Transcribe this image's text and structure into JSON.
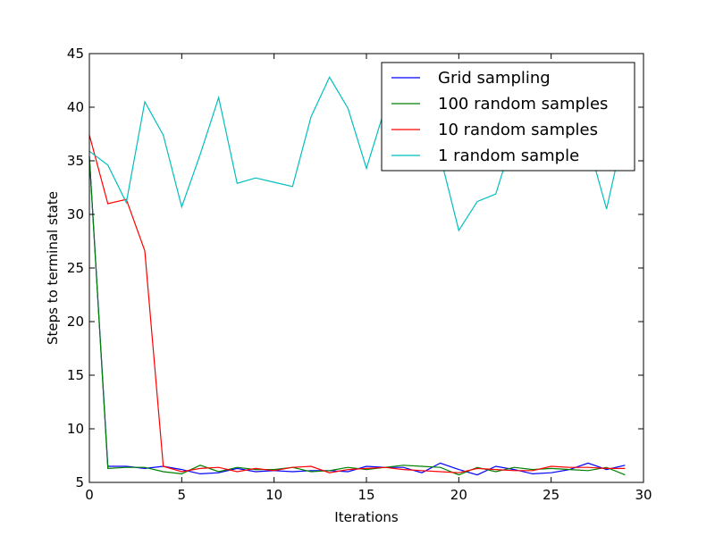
{
  "chart_data": {
    "type": "line",
    "xlabel": "Iterations",
    "ylabel": "Steps to terminal state",
    "xlim": [
      0,
      30
    ],
    "ylim": [
      5,
      45
    ],
    "xticks": [
      0,
      5,
      10,
      15,
      20,
      25,
      30
    ],
    "yticks": [
      5,
      10,
      15,
      20,
      25,
      30,
      35,
      40,
      45
    ],
    "grid": false,
    "legend_position": "top-right",
    "x": [
      0,
      1,
      2,
      3,
      4,
      5,
      6,
      7,
      8,
      9,
      10,
      11,
      12,
      13,
      14,
      15,
      16,
      17,
      18,
      19,
      20,
      21,
      22,
      23,
      24,
      25,
      26,
      27,
      28,
      29
    ],
    "series": [
      {
        "name": "Grid sampling",
        "color": "#0000ff",
        "values": [
          35.4,
          6.5,
          6.5,
          6.3,
          6.5,
          6.2,
          5.8,
          5.9,
          6.3,
          6.0,
          6.1,
          6.0,
          6.1,
          6.1,
          6.0,
          6.5,
          6.4,
          6.4,
          5.9,
          6.8,
          6.2,
          5.7,
          6.5,
          6.2,
          5.8,
          5.9,
          6.2,
          6.8,
          6.2,
          6.6
        ]
      },
      {
        "name": "100 random samples",
        "color": "#008000",
        "values": [
          35.4,
          6.3,
          6.4,
          6.4,
          6.0,
          5.8,
          6.6,
          6.0,
          6.4,
          6.2,
          6.2,
          6.4,
          6.0,
          6.1,
          6.4,
          6.2,
          6.4,
          6.6,
          6.5,
          6.4,
          5.7,
          6.4,
          6.0,
          6.4,
          6.2,
          6.3,
          6.2,
          6.1,
          6.4,
          5.7
        ]
      },
      {
        "name": "10 random samples",
        "color": "#ff0000",
        "values": [
          37.4,
          31.0,
          31.4,
          26.6,
          6.5,
          6.0,
          6.3,
          6.4,
          6.0,
          6.3,
          6.1,
          6.4,
          6.5,
          5.9,
          6.2,
          6.3,
          6.4,
          6.2,
          6.1,
          6.0,
          5.9,
          6.3,
          6.2,
          6.1,
          6.1,
          6.5,
          6.4,
          6.4,
          6.3,
          6.3
        ]
      },
      {
        "name": "1 random sample",
        "color": "#00bfbf",
        "values": [
          35.9,
          34.6,
          31.1,
          40.5,
          37.4,
          30.7,
          35.6,
          40.9,
          32.9,
          33.4,
          33.0,
          32.6,
          39.1,
          42.8,
          39.9,
          34.3,
          39.9,
          41.6,
          40.6,
          35.4,
          28.5,
          31.2,
          31.9,
          37.4,
          36.9,
          39.6,
          36.7,
          36.7,
          30.5,
          38.2
        ]
      }
    ]
  }
}
